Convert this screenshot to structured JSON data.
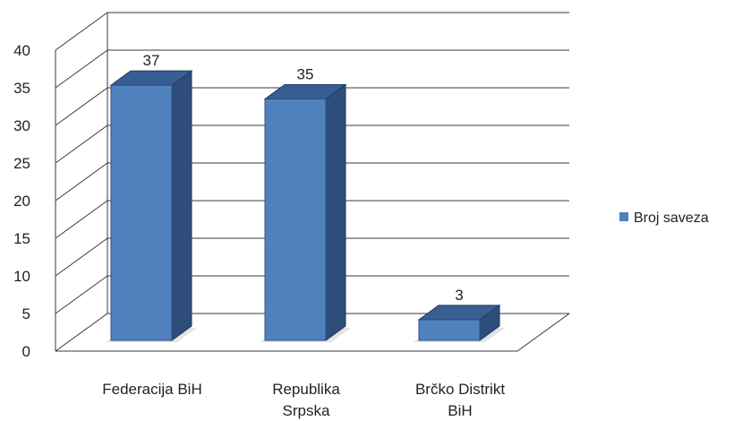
{
  "chart_data": {
    "type": "bar",
    "title": "",
    "xlabel": "",
    "ylabel": "",
    "categories": [
      [
        "Federacija BiH"
      ],
      [
        "Republika",
        "Srpska"
      ],
      [
        "Brčko Distrikt",
        "BiH"
      ]
    ],
    "series": [
      {
        "name": "Broj saveza",
        "values": [
          37,
          35,
          3
        ],
        "color": "#4f81bd"
      }
    ],
    "data_labels": [
      "37",
      "35",
      "3"
    ],
    "ylim": [
      0,
      40
    ],
    "y_ticks": [
      0,
      5,
      10,
      15,
      20,
      25,
      30,
      35,
      40
    ],
    "grid": true,
    "three_d": true,
    "legend_position": "right"
  }
}
